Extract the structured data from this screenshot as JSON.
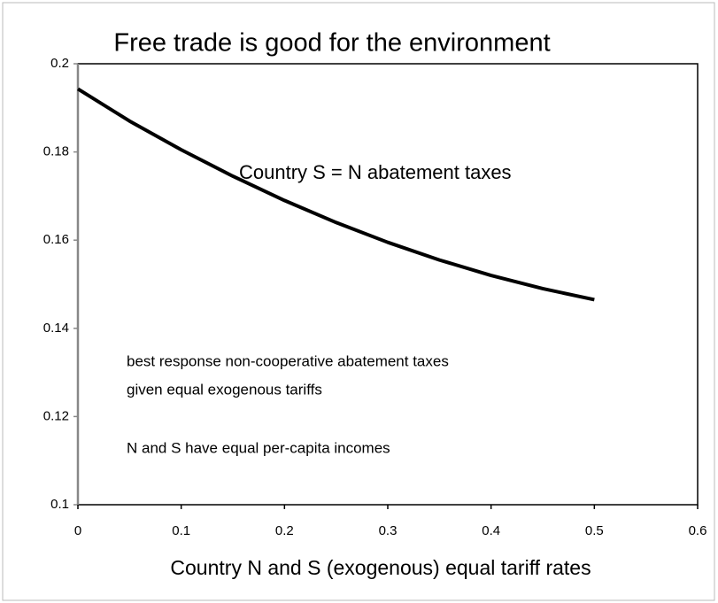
{
  "chart_data": {
    "type": "line",
    "title": "Free trade is good for the environment",
    "x_label": "Country N and S (exogenous) equal tariff rates",
    "annotations": [
      "Country S = N abatement taxes",
      "best response non-cooperative abatement taxes",
      "given equal exogenous tariffs",
      "N and S have equal per-capita incomes"
    ],
    "x": [
      0,
      0.05,
      0.1,
      0.15,
      0.2,
      0.25,
      0.3,
      0.35,
      0.4,
      0.45,
      0.5
    ],
    "series": [
      {
        "color": "#000000",
        "values": [
          0.1943,
          0.187,
          0.1805,
          0.1745,
          0.169,
          0.164,
          0.1595,
          0.1555,
          0.152,
          0.149,
          0.1465
        ]
      }
    ],
    "xlim": [
      0,
      0.6
    ],
    "xticks": [
      0,
      0.1,
      0.2,
      0.3,
      0.4,
      0.5,
      0.6
    ],
    "ylim": [
      0.1,
      0.2
    ],
    "yticks": [
      0.1,
      0.12,
      0.14,
      0.16,
      0.18,
      0.2
    ],
    "grid": false
  }
}
